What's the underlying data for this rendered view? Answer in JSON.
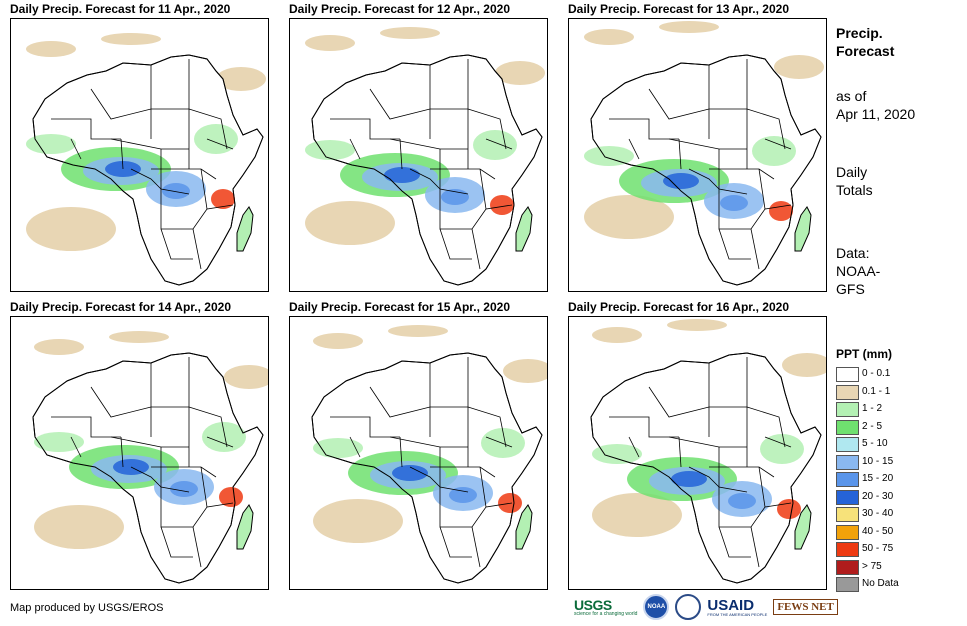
{
  "panels": [
    {
      "title": "Daily Precip. Forecast for 11 Apr., 2020"
    },
    {
      "title": "Daily Precip. Forecast for 12 Apr., 2020"
    },
    {
      "title": "Daily Precip. Forecast for 13 Apr., 2020"
    },
    {
      "title": "Daily Precip. Forecast for 14 Apr., 2020"
    },
    {
      "title": "Daily Precip. Forecast for 15 Apr., 2020"
    },
    {
      "title": "Daily Precip. Forecast for 16 Apr., 2020"
    }
  ],
  "side": {
    "title_line1": "Precip.",
    "title_line2": "Forecast",
    "asof_line1": "as of",
    "asof_line2": "Apr 11, 2020",
    "totals_line1": "Daily",
    "totals_line2": "Totals",
    "data_line1": "Data:",
    "data_line2": "NOAA-",
    "data_line3": "GFS"
  },
  "legend": {
    "title": "PPT (mm)",
    "items": [
      {
        "label": "0 - 0.1",
        "color": "#ffffff"
      },
      {
        "label": "0.1 - 1",
        "color": "#e8d6b4"
      },
      {
        "label": "1 - 2",
        "color": "#b3f0b3"
      },
      {
        "label": "2 - 5",
        "color": "#6fe06f"
      },
      {
        "label": "5 - 10",
        "color": "#b0e8f0"
      },
      {
        "label": "10 - 15",
        "color": "#8ab8f0"
      },
      {
        "label": "15 - 20",
        "color": "#5a95ea"
      },
      {
        "label": "20 - 30",
        "color": "#2563d8"
      },
      {
        "label": "30 - 40",
        "color": "#f7e27a"
      },
      {
        "label": "40 - 50",
        "color": "#f2a20a"
      },
      {
        "label": "50 - 75",
        "color": "#ee3a12"
      },
      {
        "label": "> 75",
        "color": "#b01c1c"
      },
      {
        "label": "No Data",
        "color": "#999999"
      }
    ]
  },
  "credit": "Map produced by USGS/EROS",
  "logos": {
    "usgs": "USGS",
    "usgs_tagline": "science for a changing world",
    "noaa": "NOAA",
    "usaid": "USAID",
    "usaid_tagline": "FROM THE AMERICAN PEOPLE",
    "fews": "FEWS NET"
  }
}
